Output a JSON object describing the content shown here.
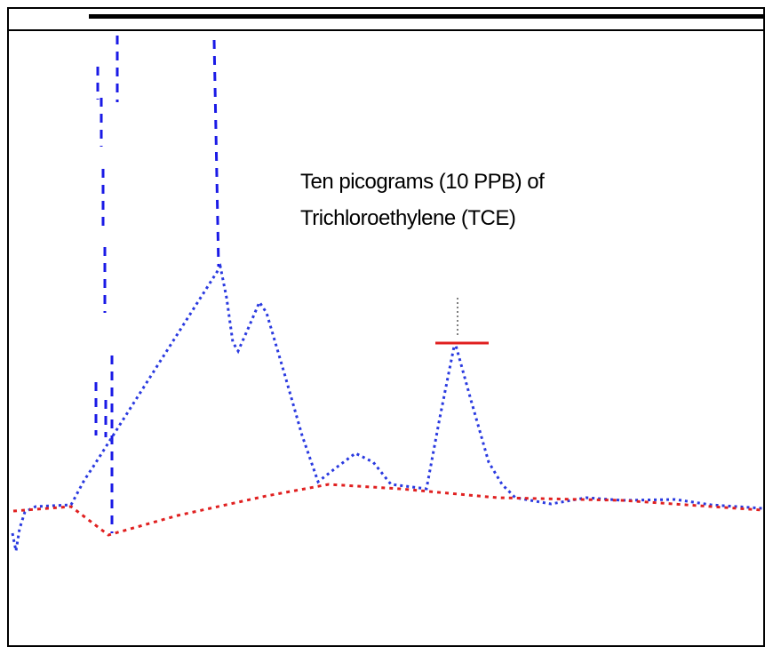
{
  "annotation": {
    "lines": [
      "Ten picograms (10 PPB) of",
      "Trichloroethylene (TCE)"
    ]
  }
}
